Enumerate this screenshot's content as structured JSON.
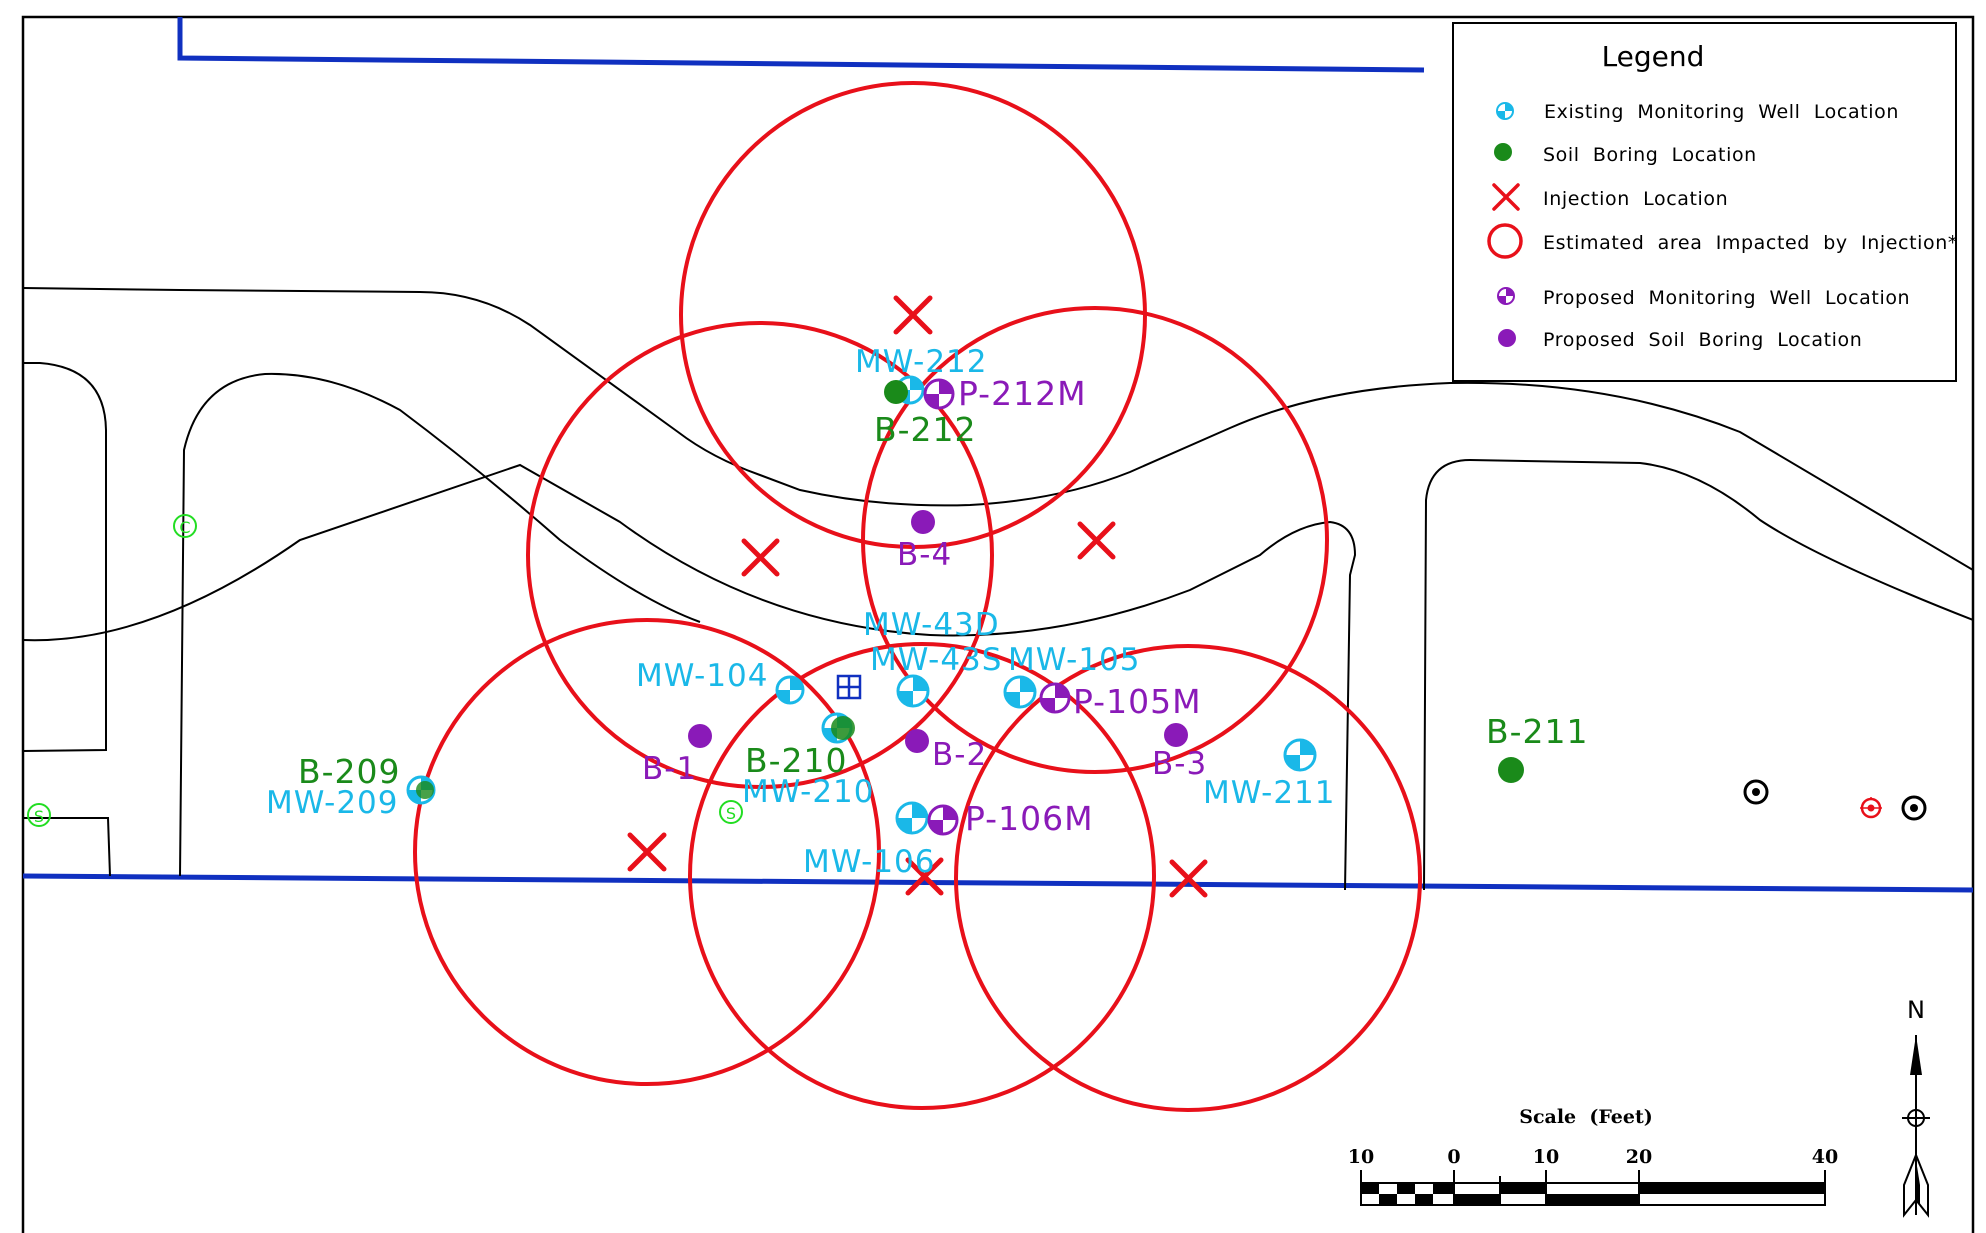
{
  "colors": {
    "well": "#1ab8e8",
    "boring": "#1a8a1a",
    "proposed": "#8a1ab8",
    "injection": "#e8101a",
    "boundary": "#1030c0",
    "survey": "#22dd22"
  },
  "legend": {
    "title": "Legend",
    "items": [
      {
        "icon": "existing-well-icon",
        "label": "Existing  Monitoring  Well  Location"
      },
      {
        "icon": "soil-boring-icon",
        "label": "Soil  Boring  Location"
      },
      {
        "icon": "injection-x-icon",
        "label": "Injection  Location"
      },
      {
        "icon": "impact-circle-icon",
        "label": "Estimated  area  Impacted  by  Injection*"
      },
      {
        "icon": "proposed-well-icon",
        "label": "Proposed  Monitoring  Well  Location"
      },
      {
        "icon": "proposed-boring-icon",
        "label": "Proposed  Soil  Boring  Location"
      }
    ]
  },
  "labels": {
    "mw212": "MW-212",
    "p212m": "P-212M",
    "b212": "B-212",
    "b4": "B-4",
    "mw43d": "MW-43D",
    "mw43s": "MW-43S",
    "mw105": "MW-105",
    "p105m": "P-105M",
    "mw104": "MW-104",
    "b1": "B-1",
    "b210": "B-210",
    "mw210": "MW-210",
    "b2": "B-2",
    "b3": "B-3",
    "mw211": "MW-211",
    "b211": "B-211",
    "b209": "B-209",
    "mw209": "MW-209",
    "p106m": "P-106M",
    "mw106": "MW-106"
  },
  "survey_marks": {
    "s_left": "S",
    "s_mid": "S",
    "c_mark": "C"
  },
  "scale_bar": {
    "title": "Scale  (Feet)",
    "ticks": [
      "10",
      "0",
      "10",
      "20",
      "40"
    ]
  },
  "north_arrow": {
    "label": "N"
  }
}
